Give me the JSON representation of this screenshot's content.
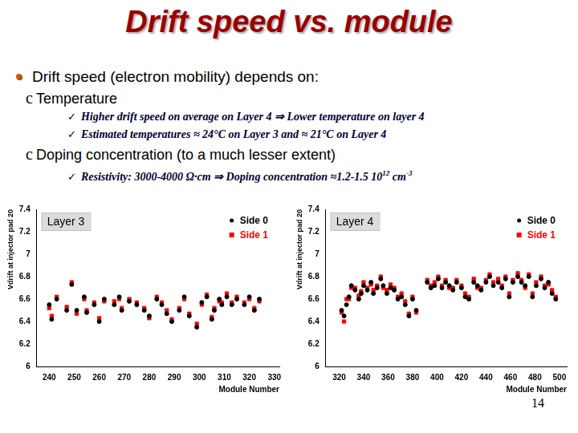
{
  "slide": {
    "title": "Drift speed vs. module",
    "bullets": [
      {
        "level": 1,
        "text": "Drift speed (electron mobility) depends on:"
      },
      {
        "level": 2,
        "bullet": "c",
        "text": "Temperature"
      },
      {
        "level": 3,
        "bullet": "✓",
        "text": "Higher drift speed  on average on Layer 4 ⇒ Lower temperature on layer 4"
      },
      {
        "level": 3,
        "bullet": "✓",
        "text": "Estimated temperatures ≈ 24°C on Layer 3 and ≈ 21°C  on Layer 4"
      },
      {
        "level": 2,
        "bullet": "c",
        "text": "Doping concentration (to a much lesser extent)"
      },
      {
        "level": 3,
        "bullet": "✓",
        "parts": [
          {
            "text": "Resistivity: 3000-4000 Ω·cm ⇒ Doping concentration ≈1.2-1.5 10"
          },
          {
            "sup": "12"
          },
          {
            "text": " cm"
          },
          {
            "sup": "-3"
          }
        ]
      }
    ],
    "page_number": "14"
  },
  "chart_data": [
    {
      "type": "scatter",
      "annotation": "Layer 3",
      "x_label": "Module Number",
      "y_label": "Vdrift at injector pad 20",
      "x": [
        240,
        241,
        243,
        247,
        249,
        251,
        254,
        255,
        258,
        260,
        262,
        266,
        268,
        269,
        272,
        275,
        278,
        280,
        283,
        285,
        287,
        289,
        292,
        294,
        296,
        299,
        301,
        303,
        305,
        306,
        308,
        309,
        311,
        313,
        315,
        318,
        320,
        322,
        324
      ],
      "series": [
        {
          "name": "Side 0",
          "color": "#000000",
          "marker": "circle",
          "values": [
            6.55,
            6.42,
            6.6,
            6.5,
            6.73,
            6.5,
            6.62,
            6.48,
            6.55,
            6.4,
            6.6,
            6.55,
            6.62,
            6.5,
            6.58,
            6.55,
            6.5,
            6.45,
            6.6,
            6.55,
            6.47,
            6.4,
            6.5,
            6.62,
            6.45,
            6.35,
            6.57,
            6.62,
            6.42,
            6.5,
            6.6,
            6.55,
            6.62,
            6.55,
            6.6,
            6.55,
            6.62,
            6.5,
            6.6
          ]
        },
        {
          "name": "Side 1",
          "color": "#ff0000",
          "marker": "square",
          "values": [
            6.52,
            6.45,
            6.62,
            6.53,
            6.75,
            6.47,
            6.6,
            6.5,
            6.57,
            6.43,
            6.58,
            6.58,
            6.6,
            6.52,
            6.6,
            6.57,
            6.52,
            6.43,
            6.62,
            6.57,
            6.5,
            6.42,
            6.52,
            6.6,
            6.47,
            6.38,
            6.55,
            6.64,
            6.44,
            6.52,
            6.58,
            6.57,
            6.65,
            6.57,
            6.62,
            6.57,
            6.6,
            6.52,
            6.58
          ]
        }
      ],
      "xlim": [
        235,
        332
      ],
      "xticks": [
        240,
        250,
        260,
        270,
        280,
        290,
        300,
        310,
        320,
        330
      ],
      "ylim": [
        6,
        7.4
      ],
      "yticks": [
        6,
        6.2,
        6.4,
        6.6,
        6.8,
        7,
        7.2,
        7.4
      ],
      "grid": false,
      "legend": "top right"
    },
    {
      "type": "scatter",
      "annotation": "Layer 4",
      "x_label": "Module Number",
      "y_label": "Vdrift at injector pad 20",
      "x": [
        322,
        324,
        326,
        328,
        330,
        333,
        336,
        338,
        340,
        343,
        346,
        348,
        351,
        354,
        356,
        359,
        362,
        365,
        368,
        371,
        374,
        377,
        380,
        383,
        392,
        395,
        398,
        401,
        404,
        407,
        410,
        413,
        416,
        420,
        423,
        426,
        430,
        433,
        436,
        440,
        443,
        446,
        450,
        453,
        456,
        459,
        462,
        466,
        469,
        472,
        475,
        478,
        481,
        485,
        488,
        491,
        494,
        497
      ],
      "series": [
        {
          "name": "Side 0",
          "color": "#000000",
          "marker": "circle",
          "values": [
            6.5,
            6.45,
            6.55,
            6.62,
            6.72,
            6.68,
            6.6,
            6.65,
            6.72,
            6.68,
            6.75,
            6.65,
            6.7,
            6.78,
            6.72,
            6.65,
            6.7,
            6.68,
            6.6,
            6.62,
            6.55,
            6.45,
            6.6,
            6.5,
            6.75,
            6.7,
            6.72,
            6.78,
            6.7,
            6.75,
            6.72,
            6.68,
            6.75,
            6.7,
            6.62,
            6.6,
            6.75,
            6.72,
            6.68,
            6.75,
            6.8,
            6.72,
            6.75,
            6.7,
            6.78,
            6.62,
            6.75,
            6.8,
            6.75,
            6.72,
            6.8,
            6.62,
            6.72,
            6.78,
            6.7,
            6.75,
            6.65,
            6.6
          ]
        },
        {
          "name": "Side 1",
          "color": "#ff0000",
          "marker": "square",
          "values": [
            6.48,
            6.4,
            6.6,
            6.6,
            6.7,
            6.7,
            6.63,
            6.67,
            6.75,
            6.7,
            6.73,
            6.68,
            6.72,
            6.8,
            6.7,
            6.68,
            6.73,
            6.7,
            6.62,
            6.65,
            6.58,
            6.47,
            6.62,
            6.48,
            6.77,
            6.72,
            6.75,
            6.8,
            6.72,
            6.77,
            6.7,
            6.7,
            6.77,
            6.72,
            6.65,
            6.62,
            6.78,
            6.7,
            6.7,
            6.77,
            6.82,
            6.75,
            6.78,
            6.72,
            6.8,
            6.65,
            6.77,
            6.83,
            6.77,
            6.7,
            6.82,
            6.65,
            6.75,
            6.8,
            6.72,
            6.73,
            6.68,
            6.62
          ]
        }
      ],
      "xlim": [
        309,
        506
      ],
      "xticks": [
        320,
        340,
        360,
        380,
        400,
        420,
        440,
        460,
        480,
        500
      ],
      "ylim": [
        6,
        7.4
      ],
      "yticks": [
        6,
        6.2,
        6.4,
        6.6,
        6.8,
        7,
        7.2,
        7.4
      ],
      "grid": false,
      "legend": "top right"
    }
  ]
}
